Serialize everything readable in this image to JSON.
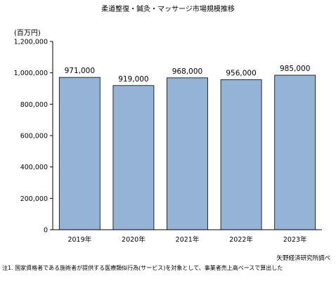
{
  "chart_data": {
    "type": "bar",
    "title": "柔道整復・鍼灸・マッサージ市場規模推移",
    "ylabel": "(百万円)",
    "categories": [
      "2019年",
      "2020年",
      "2021年",
      "2022年",
      "2023年"
    ],
    "values": [
      971000,
      919000,
      968000,
      956000,
      985000
    ],
    "data_labels": [
      "971,000",
      "919,000",
      "968,000",
      "956,000",
      "985,000"
    ],
    "ylim": [
      0,
      1200000
    ],
    "yticks": [
      0,
      200000,
      400000,
      600000,
      800000,
      1000000,
      1200000
    ],
    "ytick_labels": [
      "0",
      "200,000",
      "400,000",
      "600,000",
      "800,000",
      "1,000,000",
      "1,200,000"
    ],
    "grid": false,
    "bar_color": "#95b3d7",
    "source": "矢野経済研究所調べ",
    "note": "注1. 国家資格者である施術者が提供する医療類似行為(サービス)を対象として、事業者売上高ベースで算出した"
  }
}
